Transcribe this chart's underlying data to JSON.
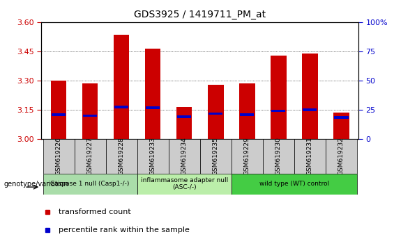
{
  "title": "GDS3925 / 1419711_PM_at",
  "samples": [
    "GSM619226",
    "GSM619227",
    "GSM619228",
    "GSM619233",
    "GSM619234",
    "GSM619235",
    "GSM619229",
    "GSM619230",
    "GSM619231",
    "GSM619232"
  ],
  "bar_values": [
    3.3,
    3.285,
    3.535,
    3.465,
    3.165,
    3.28,
    3.285,
    3.43,
    3.44,
    3.135
  ],
  "percentile_values": [
    3.125,
    3.12,
    3.165,
    3.16,
    3.115,
    3.13,
    3.125,
    3.145,
    3.15,
    3.11
  ],
  "bar_bottom": 3.0,
  "ylim_left": [
    3.0,
    3.6
  ],
  "ylim_right": [
    0,
    100
  ],
  "yticks_left": [
    3.0,
    3.15,
    3.3,
    3.45,
    3.6
  ],
  "yticks_right": [
    0,
    25,
    50,
    75,
    100
  ],
  "bar_color": "#cc0000",
  "percentile_color": "#0000cc",
  "groups": [
    {
      "label": "Caspase 1 null (Casp1-/-)",
      "indices": [
        0,
        1,
        2
      ],
      "color": "#aaddaa"
    },
    {
      "label": "inflammasome adapter null\n(ASC-/-)",
      "indices": [
        3,
        4,
        5
      ],
      "color": "#bbeeaa"
    },
    {
      "label": "wild type (WT) control",
      "indices": [
        6,
        7,
        8,
        9
      ],
      "color": "#44cc44"
    }
  ],
  "bar_width": 0.5,
  "grid_color": "#000000",
  "tick_color_left": "#cc0000",
  "tick_color_right": "#0000cc",
  "genotype_label": "genotype/variation",
  "legend_items": [
    {
      "label": "transformed count",
      "color": "#cc0000"
    },
    {
      "label": "percentile rank within the sample",
      "color": "#0000cc"
    }
  ]
}
